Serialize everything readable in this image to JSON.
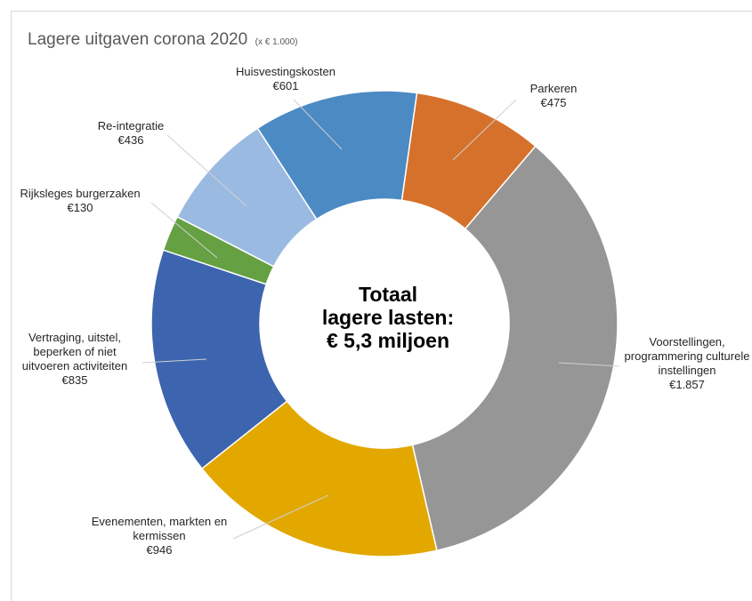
{
  "chart_data": {
    "type": "pie",
    "variant": "donut",
    "title": "Lagere uitgaven corona 2020",
    "subtitle": "(x € 1.000)",
    "center_text": [
      "Totaal",
      "lagere lasten:",
      "€ 5,3 miljoen"
    ],
    "legend": "none",
    "slices": [
      {
        "name": "Parkeren",
        "label_lines": [
          "Parkeren"
        ],
        "value": 475,
        "value_label": "€475",
        "color": "#D6712B"
      },
      {
        "name": "Voorstellingen, programmering culturele instellingen",
        "label_lines": [
          "Voorstellingen,",
          "programmering culturele",
          "instellingen"
        ],
        "value": 1857,
        "value_label": "€1.857",
        "color": "#969696"
      },
      {
        "name": "Evenementen, markten en kermissen",
        "label_lines": [
          "Evenementen, markten en",
          "kermissen"
        ],
        "value": 946,
        "value_label": "€946",
        "color": "#E2A800"
      },
      {
        "name": "Vertraging, uitstel, beperken of niet uitvoeren activiteiten",
        "label_lines": [
          "Vertraging, uitstel,",
          "beperken of niet",
          "uitvoeren activiteiten"
        ],
        "value": 835,
        "value_label": "€835",
        "color": "#3D64AE"
      },
      {
        "name": "Rijksleges burgerzaken",
        "label_lines": [
          "Rijksleges burgerzaken"
        ],
        "value": 130,
        "value_label": "€130",
        "color": "#65A042"
      },
      {
        "name": "Re-integratie",
        "label_lines": [
          "Re-integratie"
        ],
        "value": 436,
        "value_label": "€436",
        "color": "#9BBAE2"
      },
      {
        "name": "Huisvestingskosten",
        "label_lines": [
          "Huisvestingskosten"
        ],
        "value": 601,
        "value_label": "€601",
        "color": "#4C8AC4"
      }
    ]
  }
}
